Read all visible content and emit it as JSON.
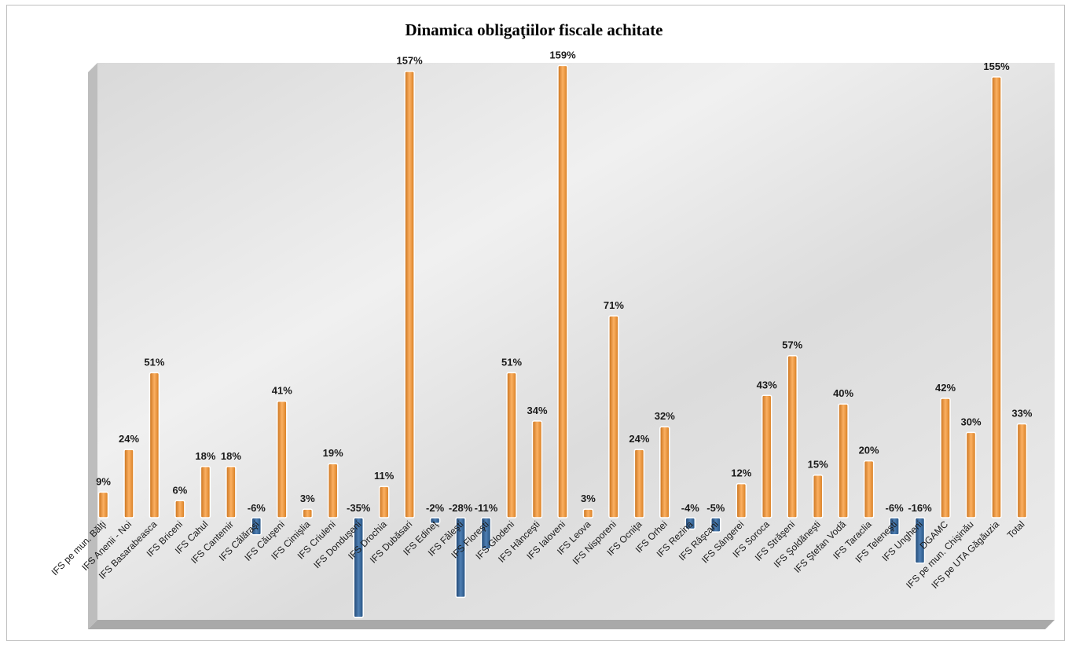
{
  "chart_data": {
    "type": "bar",
    "title": "Dinamica  obligaţiilor fiscale achitate",
    "xlabel": "",
    "ylabel": "",
    "ylim": [
      -50,
      165
    ],
    "grid": false,
    "legend": "none",
    "colors": {
      "positive": "#f0962e",
      "negative": "#2f5d8f"
    },
    "categories": [
      "IFS pe mun. Bălţi",
      "IFS Anenii - Noi",
      "IFS Basarabeasca",
      "IFS Briceni",
      "IFS Cahul",
      "IFS Cantemir",
      "IFS Călăraşi",
      "IFS Căuşeni",
      "IFS Cimişlia",
      "IFS Criuleni",
      "IFS Donduşeni",
      "IFS Drochia",
      "IFS Dubăsari",
      "IFS Edineţ",
      "IFS Făleşti",
      "IFS Floreşti",
      "IFS Glodeni",
      "IFS Hânceşti",
      "IFS Ialoveni",
      "IFS Leova",
      "IFS Nisporeni",
      "IFS Ocniţa",
      "IFS Orhei",
      "IFS Rezina",
      "IFS Râşcani",
      "IFS Sângerei",
      "IFS Soroca",
      "IFS Străşeni",
      "IFS Şoldăneşti",
      "IFS Ştefan Vodă",
      "IFS Taraclia",
      "IFS Teleneşti",
      "IFS Ungheni",
      "DGAMC",
      "IFS pe mun. Chişinău",
      "IFS pe UTA Găgăuzia",
      "Total"
    ],
    "values": [
      9,
      24,
      51,
      6,
      18,
      18,
      -6,
      41,
      3,
      19,
      -35,
      11,
      157,
      -2,
      -28,
      -11,
      51,
      34,
      159,
      3,
      71,
      24,
      32,
      -4,
      -5,
      12,
      43,
      57,
      15,
      40,
      20,
      -6,
      -16,
      42,
      30,
      155,
      33
    ],
    "labels": [
      "9%",
      "24%",
      "51%",
      "6%",
      "18%",
      "18%",
      "-6%",
      "41%",
      "3%",
      "19%",
      "-35%",
      "11%",
      "157%",
      "-2%",
      "-28%",
      "-11%",
      "51%",
      "34%",
      "159%",
      "3%",
      "71%",
      "24%",
      "32%",
      "-4%",
      "-5%",
      "12%",
      "43%",
      "57%",
      "15%",
      "40%",
      "20%",
      "-6%",
      "-16%",
      "42%",
      "30%",
      "155%",
      "33%"
    ]
  }
}
